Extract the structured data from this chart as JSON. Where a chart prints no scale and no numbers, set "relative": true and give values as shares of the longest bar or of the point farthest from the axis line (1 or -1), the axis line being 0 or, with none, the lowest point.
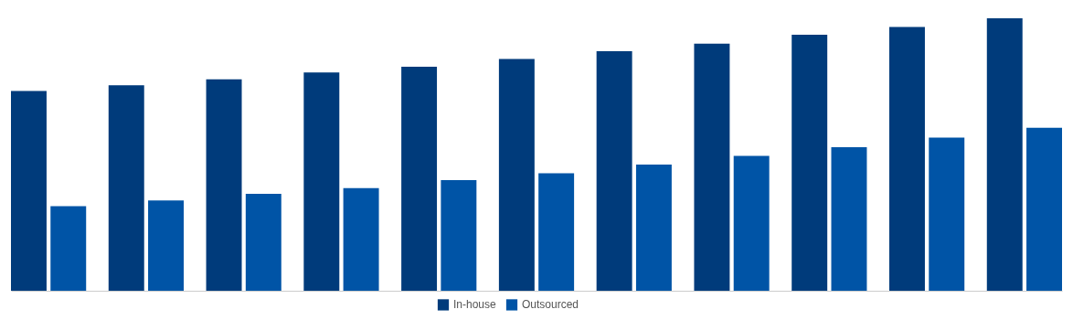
{
  "chart_data": {
    "type": "bar",
    "relative": true,
    "legend": "bottom",
    "categories": [
      null,
      null,
      null,
      null,
      null,
      null,
      null,
      null,
      null,
      null,
      null
    ],
    "series": [
      {
        "name": "In-house",
        "color": "#003b7b",
        "values": [
          0.733,
          0.754,
          0.776,
          0.801,
          0.822,
          0.851,
          0.879,
          0.907,
          0.94,
          0.968,
          1
        ]
      },
      {
        "name": "Outsourced",
        "color": "#0054a6",
        "values": [
          0.31,
          0.331,
          0.356,
          0.377,
          0.406,
          0.431,
          0.463,
          0.495,
          0.527,
          0.562,
          0.598
        ]
      }
    ]
  }
}
